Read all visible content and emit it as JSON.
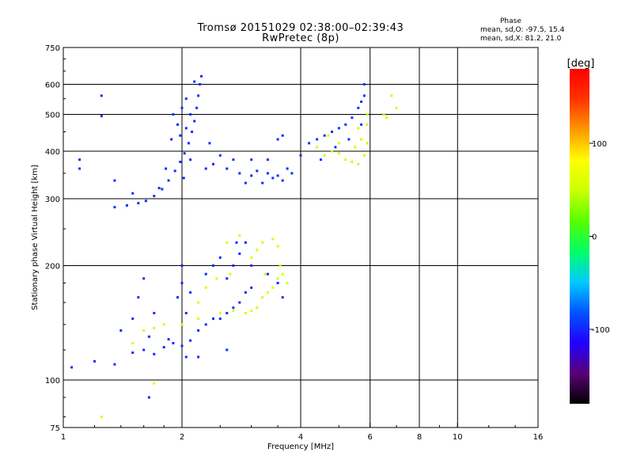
{
  "header": {
    "title_line1": "Tromsø 20151029 02:38:00–02:39:43",
    "title_line2": "RwPretec (8p)",
    "phase_heading": "Phase",
    "phase_O": "mean, sd,O: -97.5, 15.4",
    "phase_X": "mean, sd,X:  81.2, 21.0"
  },
  "colorbar": {
    "unit": "[deg]",
    "ticks": [
      "100",
      "0",
      "-100"
    ],
    "tick_values": [
      100,
      0,
      -100
    ],
    "range": [
      -180,
      180
    ],
    "colors": [
      "#000000",
      "#5a0078",
      "#2200ff",
      "#0055ff",
      "#00ccff",
      "#00ff66",
      "#55ff00",
      "#ccff00",
      "#ffff00",
      "#ff9900",
      "#ff3300",
      "#ff0000"
    ]
  },
  "chart_data": {
    "type": "scatter",
    "title": "Tromsø 20151029 02:38:00–02:39:43",
    "subtitle": "RwPretec (8p)",
    "xlabel": "Frequency [MHz]",
    "ylabel": "Stationary phase Virtual Height [km]",
    "x_scale": "log",
    "y_scale": "log",
    "xlim": [
      1,
      16
    ],
    "ylim": [
      75,
      750
    ],
    "grid": true,
    "x_ticks": [
      1,
      2,
      4,
      6,
      8,
      10,
      16
    ],
    "x_tick_labels": [
      "1",
      "2",
      "4",
      "6",
      "8",
      "10",
      "16"
    ],
    "y_ticks": [
      75,
      100,
      200,
      300,
      400,
      500,
      600,
      750
    ],
    "y_tick_labels": [
      "75",
      "100",
      "200",
      "300",
      "400",
      "500",
      "600",
      "750"
    ],
    "color_quantity": "phase [deg]",
    "series": [
      {
        "points": [
          [
            1.35,
            285
          ],
          [
            1.45,
            288
          ],
          [
            1.55,
            292
          ],
          [
            1.62,
            296
          ],
          [
            1.7,
            305
          ],
          [
            1.78,
            318
          ],
          [
            1.85,
            335
          ],
          [
            1.92,
            355
          ],
          [
            1.98,
            375
          ],
          [
            2.03,
            395
          ],
          [
            2.08,
            420
          ],
          [
            2.12,
            450
          ],
          [
            2.15,
            480
          ],
          [
            2.18,
            520
          ],
          [
            2.2,
            560
          ],
          [
            2.22,
            600
          ],
          [
            2.24,
            630
          ],
          [
            1.95,
            470
          ],
          [
            2.0,
            520
          ],
          [
            1.9,
            500
          ],
          [
            2.05,
            460
          ],
          [
            1.88,
            430
          ],
          [
            2.1,
            380
          ],
          [
            1.82,
            360
          ],
          [
            2.02,
            340
          ],
          [
            1.75,
            320
          ],
          [
            2.05,
            550
          ],
          [
            2.15,
            610
          ],
          [
            1.98,
            440
          ],
          [
            2.1,
            500
          ]
        ],
        "phase": -97
      },
      {
        "points": [
          [
            2.6,
            360
          ],
          [
            2.8,
            350
          ],
          [
            2.9,
            330
          ],
          [
            3.0,
            345
          ],
          [
            3.1,
            355
          ],
          [
            3.2,
            330
          ],
          [
            3.3,
            350
          ],
          [
            3.4,
            340
          ],
          [
            3.5,
            345
          ],
          [
            3.6,
            335
          ],
          [
            3.7,
            360
          ],
          [
            3.8,
            350
          ],
          [
            2.7,
            380
          ],
          [
            3.0,
            380
          ],
          [
            3.3,
            380
          ],
          [
            3.6,
            440
          ],
          [
            3.5,
            430
          ],
          [
            2.4,
            370
          ],
          [
            2.5,
            390
          ],
          [
            1.25,
            560
          ],
          [
            1.25,
            495
          ],
          [
            1.1,
            380
          ],
          [
            1.1,
            360
          ],
          [
            1.35,
            335
          ],
          [
            1.5,
            310
          ],
          [
            2.3,
            360
          ],
          [
            2.35,
            420
          ]
        ],
        "phase": -97
      },
      {
        "points": [
          [
            4.0,
            390
          ],
          [
            4.2,
            420
          ],
          [
            4.4,
            430
          ],
          [
            4.6,
            440
          ],
          [
            4.8,
            450
          ],
          [
            5.0,
            460
          ],
          [
            5.2,
            470
          ],
          [
            5.4,
            490
          ],
          [
            5.6,
            520
          ],
          [
            5.7,
            540
          ],
          [
            5.8,
            560
          ],
          [
            5.8,
            600
          ],
          [
            5.7,
            470
          ],
          [
            5.3,
            430
          ],
          [
            4.5,
            380
          ],
          [
            4.9,
            410
          ]
        ],
        "phase": -95
      },
      {
        "points": [
          [
            4.6,
            390
          ],
          [
            4.8,
            400
          ],
          [
            5.0,
            395
          ],
          [
            5.2,
            380
          ],
          [
            5.4,
            375
          ],
          [
            5.6,
            370
          ],
          [
            5.8,
            390
          ],
          [
            5.9,
            420
          ],
          [
            5.9,
            470
          ],
          [
            5.9,
            500
          ],
          [
            5.7,
            430
          ],
          [
            5.5,
            410
          ],
          [
            5.0,
            420
          ],
          [
            4.7,
            440
          ],
          [
            4.4,
            410
          ],
          [
            6.6,
            490
          ],
          [
            7.0,
            520
          ],
          [
            6.8,
            560
          ],
          [
            6.5,
            500
          ],
          [
            5.6,
            460
          ]
        ],
        "phase": 80
      },
      {
        "points": [
          [
            1.5,
            118
          ],
          [
            1.6,
            120
          ],
          [
            1.7,
            117
          ],
          [
            1.8,
            122
          ],
          [
            1.9,
            125
          ],
          [
            2.0,
            123
          ],
          [
            2.1,
            127
          ],
          [
            2.2,
            135
          ],
          [
            2.3,
            140
          ],
          [
            2.4,
            145
          ],
          [
            2.5,
            145
          ],
          [
            2.6,
            150
          ],
          [
            2.7,
            155
          ],
          [
            2.8,
            160
          ],
          [
            2.9,
            170
          ],
          [
            3.0,
            175
          ],
          [
            1.65,
            130
          ],
          [
            1.85,
            128
          ],
          [
            2.05,
            150
          ],
          [
            2.0,
            180
          ],
          [
            2.0,
            200
          ],
          [
            1.95,
            165
          ],
          [
            2.1,
            170
          ],
          [
            2.3,
            190
          ],
          [
            2.4,
            200
          ],
          [
            2.5,
            210
          ],
          [
            2.6,
            185
          ],
          [
            2.7,
            200
          ],
          [
            2.8,
            215
          ],
          [
            2.9,
            230
          ],
          [
            1.6,
            185
          ],
          [
            1.55,
            165
          ],
          [
            1.7,
            150
          ],
          [
            1.5,
            145
          ],
          [
            1.4,
            135
          ],
          [
            1.35,
            110
          ],
          [
            1.2,
            112
          ],
          [
            1.05,
            108
          ],
          [
            1.65,
            90
          ],
          [
            2.05,
            115
          ],
          [
            2.2,
            115
          ],
          [
            2.6,
            120
          ],
          [
            2.75,
            230
          ],
          [
            3.0,
            200
          ],
          [
            3.3,
            190
          ],
          [
            3.5,
            180
          ],
          [
            3.6,
            165
          ]
        ],
        "phase": -97
      },
      {
        "points": [
          [
            1.6,
            135
          ],
          [
            1.7,
            137
          ],
          [
            1.8,
            140
          ],
          [
            2.0,
            140
          ],
          [
            2.2,
            145
          ],
          [
            2.5,
            150
          ],
          [
            2.7,
            152
          ],
          [
            2.9,
            150
          ],
          [
            3.0,
            152
          ],
          [
            3.1,
            155
          ],
          [
            3.2,
            165
          ],
          [
            3.3,
            170
          ],
          [
            3.4,
            175
          ],
          [
            3.5,
            185
          ],
          [
            3.6,
            190
          ],
          [
            3.7,
            180
          ],
          [
            2.6,
            230
          ],
          [
            2.8,
            240
          ],
          [
            3.0,
            210
          ],
          [
            3.1,
            220
          ],
          [
            3.2,
            230
          ],
          [
            3.4,
            235
          ],
          [
            3.5,
            225
          ],
          [
            2.3,
            175
          ],
          [
            2.45,
            185
          ],
          [
            2.65,
            190
          ],
          [
            2.2,
            160
          ],
          [
            1.5,
            125
          ],
          [
            3.55,
            200
          ],
          [
            3.25,
            190
          ],
          [
            1.25,
            80
          ],
          [
            1.7,
            98
          ]
        ],
        "phase": 85
      }
    ]
  }
}
